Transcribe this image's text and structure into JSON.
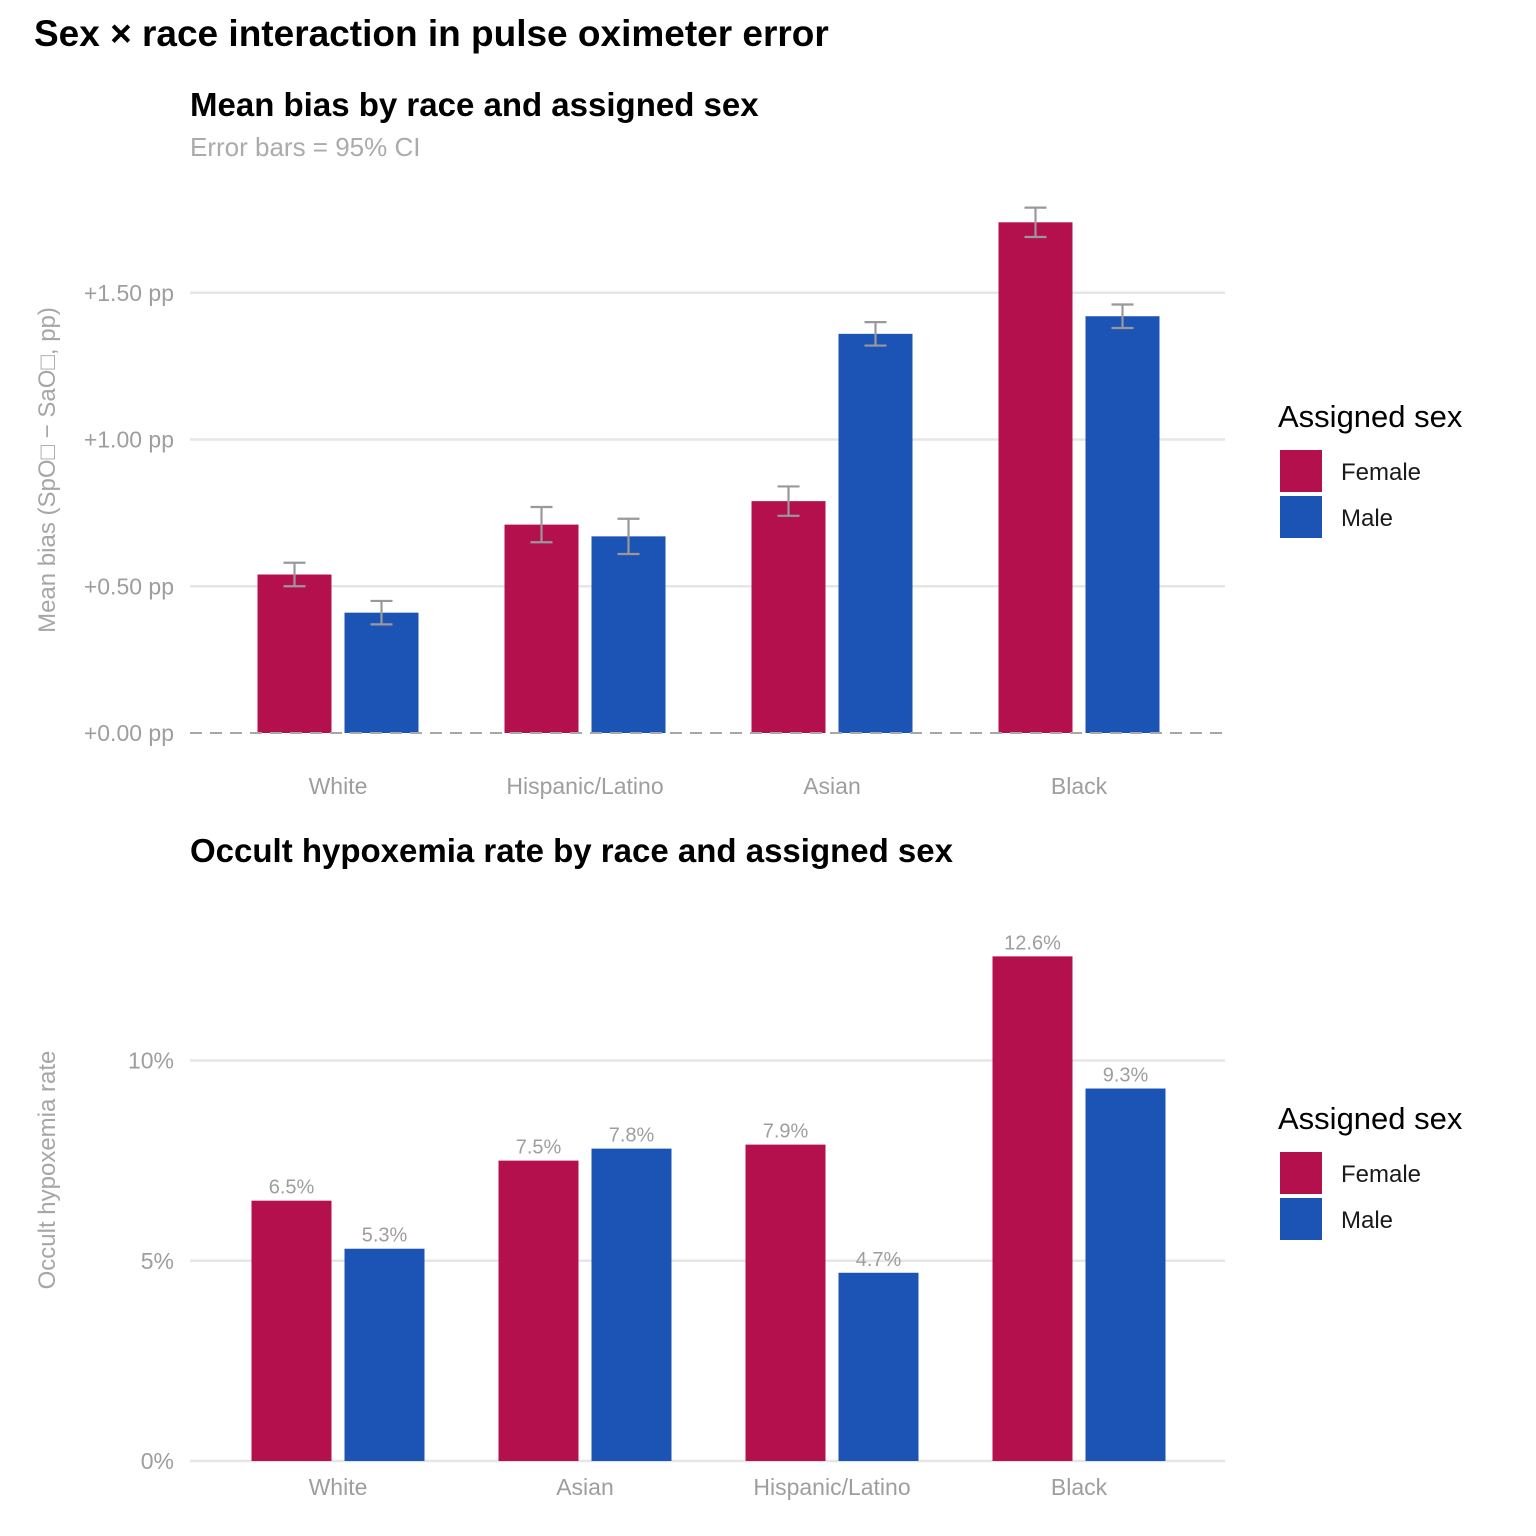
{
  "page": {
    "title": "Sex × race interaction in pulse oximeter error"
  },
  "colors": {
    "female": "#b5104e",
    "male": "#1c54b6"
  },
  "chart_data": [
    {
      "type": "bar",
      "title": "Mean bias by race and assigned sex",
      "subtitle": "Error bars = 95% CI",
      "xlabel": "",
      "ylabel": "Mean bias (SpO□ − SaO□, pp)",
      "ylim": [
        0,
        1.8
      ],
      "yticks": [
        {
          "value": 0,
          "label": "+0.00 pp"
        },
        {
          "value": 0.5,
          "label": "+0.50 pp"
        },
        {
          "value": 1.0,
          "label": "+1.00 pp"
        },
        {
          "value": 1.5,
          "label": "+1.50 pp"
        }
      ],
      "zero_line": "dashed",
      "grid": true,
      "categories": [
        "White",
        "Hispanic/Latino",
        "Asian",
        "Black"
      ],
      "series": [
        {
          "name": "Female",
          "values": [
            0.54,
            0.71,
            0.79,
            1.74
          ],
          "ci_low": [
            0.5,
            0.65,
            0.74,
            1.69
          ],
          "ci_high": [
            0.58,
            0.77,
            0.84,
            1.79
          ]
        },
        {
          "name": "Male",
          "values": [
            0.41,
            0.67,
            1.36,
            1.42
          ],
          "ci_low": [
            0.37,
            0.61,
            1.32,
            1.38
          ],
          "ci_high": [
            0.45,
            0.73,
            1.4,
            1.46
          ]
        }
      ],
      "legend": {
        "title": "Assigned sex",
        "position": "right"
      }
    },
    {
      "type": "bar",
      "title": "Occult hypoxemia rate by race and assigned sex",
      "subtitle": "",
      "xlabel": "",
      "ylabel": "Occult hypoxemia rate",
      "ylim": [
        0,
        13
      ],
      "yticks": [
        {
          "value": 0,
          "label": "0%"
        },
        {
          "value": 5,
          "label": "5%"
        },
        {
          "value": 10,
          "label": "10%"
        }
      ],
      "grid": true,
      "categories": [
        "White",
        "Asian",
        "Hispanic/Latino",
        "Black"
      ],
      "series": [
        {
          "name": "Female",
          "values": [
            6.5,
            7.5,
            7.9,
            12.6
          ],
          "labels": [
            "6.5%",
            "7.5%",
            "7.9%",
            "12.6%"
          ]
        },
        {
          "name": "Male",
          "values": [
            5.3,
            7.8,
            4.7,
            9.3
          ],
          "labels": [
            "5.3%",
            "7.8%",
            "4.7%",
            "9.3%"
          ]
        }
      ],
      "legend": {
        "title": "Assigned sex",
        "position": "right"
      }
    }
  ]
}
